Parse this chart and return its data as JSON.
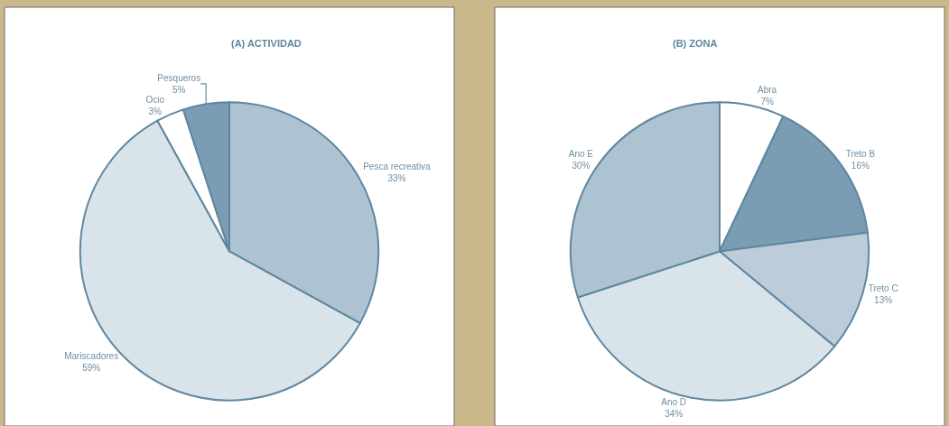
{
  "chart_data": [
    {
      "type": "pie",
      "title": "(A) ACTIVIDAD",
      "categories": [
        "Pesca recreativa",
        "Mariscadores",
        "Ocio",
        "Pesqueros"
      ],
      "values": [
        33,
        59,
        3,
        5
      ],
      "value_labels": [
        "33%",
        "59%",
        "3%",
        "5%"
      ],
      "colors": [
        "#adc3d1",
        "#d9e3ea",
        "#ffffff",
        "#7a9db3"
      ]
    },
    {
      "type": "pie",
      "title": "(B) ZONA",
      "categories": [
        "Abra",
        "Treto B",
        "Treto C",
        "Ano D",
        "Ano E"
      ],
      "values": [
        7,
        16,
        13,
        34,
        30
      ],
      "value_labels": [
        "7%",
        "16%",
        "13%",
        "34%",
        "30%"
      ],
      "colors": [
        "#ffffff",
        "#7a9db3",
        "#bccdd9",
        "#d9e3ea",
        "#adc3d1"
      ]
    }
  ]
}
